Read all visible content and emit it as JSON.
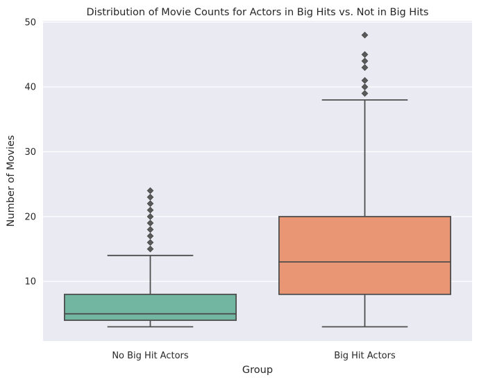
{
  "chart_data": {
    "type": "box",
    "title": "Distribution of Movie Counts for Actors in Big Hits vs. Not in Big Hits",
    "xlabel": "Group",
    "ylabel": "Number of Movies",
    "ylim": [
      0.8,
      50.2
    ],
    "yticks": [
      10,
      20,
      30,
      40,
      50
    ],
    "grid": true,
    "categories": [
      "No Big Hit Actors",
      "Big Hit Actors"
    ],
    "boxes": [
      {
        "category": "No Big Hit Actors",
        "color": "#72b6a1",
        "whisker_low": 3,
        "q1": 4,
        "median": 5,
        "q3": 8,
        "whisker_high": 14,
        "outliers": [
          15,
          16,
          17,
          18,
          19,
          20,
          21,
          22,
          23,
          24
        ]
      },
      {
        "category": "Big Hit Actors",
        "color": "#e99675",
        "whisker_low": 3,
        "q1": 8,
        "median": 13,
        "q3": 20,
        "whisker_high": 38,
        "outliers": [
          39,
          40,
          41,
          43,
          44,
          45,
          48
        ]
      }
    ]
  }
}
